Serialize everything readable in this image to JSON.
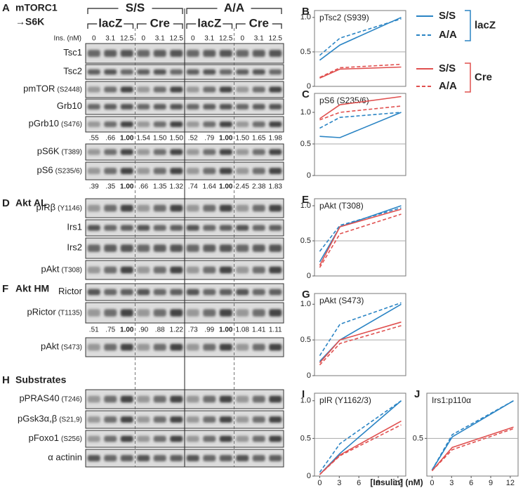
{
  "blot_panel": {
    "sections": [
      {
        "letter": "A",
        "title": [
          "mTORC1",
          "→S6K"
        ]
      },
      {
        "letter": "D",
        "title": [
          "Akt AL"
        ]
      },
      {
        "letter": "F",
        "title": [
          "Akt HM"
        ]
      },
      {
        "letter": "H",
        "title": [
          "Substrates"
        ]
      }
    ],
    "genotypes": [
      "S/S",
      "A/A"
    ],
    "treatments": [
      "lacZ",
      "Cre",
      "lacZ",
      "Cre"
    ],
    "ins_label": "Ins. (nM)",
    "lanes": [
      "0",
      "3.1",
      "12.5",
      "0",
      "3.1",
      "12.5",
      "0",
      "3.1",
      "12.5",
      "0",
      "3.1",
      "12.5"
    ],
    "rows": [
      {
        "name": "Tsc1"
      },
      {
        "name": "Tsc2"
      },
      {
        "name": "pmTOR",
        "site": "(S2448)"
      },
      {
        "name": "Grb10"
      },
      {
        "name": "pGrb10",
        "site": "(S476)"
      },
      {
        "name": "pS6K",
        "site": "(T389)"
      },
      {
        "name": "pS6",
        "site": "(S235/6)"
      },
      {
        "name": "pIRβ",
        "site": "(Y1146)"
      },
      {
        "name": "Irs1"
      },
      {
        "name": "Irs2"
      },
      {
        "name": "pAkt",
        "site": "(T308)"
      },
      {
        "name": "Rictor"
      },
      {
        "name": "pRictor",
        "site": "(T1135)"
      },
      {
        "name": "pAkt",
        "site": "(S473)"
      },
      {
        "name": "pPRAS40",
        "site": "(T246)"
      },
      {
        "name": "pGsk3α,β",
        "site": "(S21,9)"
      },
      {
        "name": "pFoxo1",
        "site": "(S256)"
      },
      {
        "name": "α actinin"
      }
    ],
    "quants": [
      [
        ".55",
        ".66",
        "1.00",
        "1.54",
        "1.50",
        "1.50",
        ".52",
        ".79",
        "1.00",
        "1.50",
        "1.65",
        "1.98"
      ],
      [
        ".39",
        ".35",
        "1.00",
        ".66",
        "1.35",
        "1.32",
        ".74",
        "1.64",
        "1.00",
        "2.45",
        "2.38",
        "1.83"
      ],
      [
        ".51",
        ".75",
        "1.00",
        ".90",
        ".88",
        "1.22",
        ".73",
        ".99",
        "1.00",
        "1.08",
        "1.41",
        "1.11"
      ]
    ]
  },
  "legend": [
    {
      "group": "lacZ",
      "color": "#2a84c4",
      "entries": [
        {
          "name": "S/S",
          "dashed": false
        },
        {
          "name": "A/A",
          "dashed": true
        }
      ]
    },
    {
      "group": "Cre",
      "color": "#e0504f",
      "entries": [
        {
          "name": "S/S",
          "dashed": false
        },
        {
          "name": "A/A",
          "dashed": true
        }
      ]
    }
  ],
  "x_label": "[Insulin] (nM)",
  "chart_data": [
    {
      "type": "line",
      "letter": "B",
      "title": "pTsc2 (S939)",
      "x": [
        0,
        3.1,
        12.5
      ],
      "xlim": [
        -0.8,
        13.2
      ],
      "ylim": [
        0,
        1.1
      ],
      "yticks": [
        0,
        0.5,
        {
          "value": 1,
          "label": "1.0"
        }
      ],
      "hline": 0.5,
      "series": [
        {
          "color": "#2a84c4",
          "dashed": false,
          "values": [
            0.38,
            0.6,
            1.0
          ]
        },
        {
          "color": "#2a84c4",
          "dashed": true,
          "values": [
            0.45,
            0.7,
            0.98
          ]
        },
        {
          "color": "#e0504f",
          "dashed": false,
          "values": [
            0.12,
            0.25,
            0.28
          ]
        },
        {
          "color": "#e0504f",
          "dashed": true,
          "values": [
            0.13,
            0.27,
            0.32
          ]
        }
      ]
    },
    {
      "type": "line",
      "letter": "C",
      "title": "pS6 (S235/6)",
      "x": [
        0,
        3.1,
        12.5
      ],
      "xlim": [
        -0.8,
        13.2
      ],
      "ylim": [
        0,
        1.3
      ],
      "yticks": [
        0,
        0.5,
        {
          "value": 1,
          "label": "1.0"
        }
      ],
      "hline": 0.5,
      "series": [
        {
          "color": "#2a84c4",
          "dashed": false,
          "values": [
            0.62,
            0.6,
            1.0
          ]
        },
        {
          "color": "#2a84c4",
          "dashed": true,
          "values": [
            0.75,
            0.92,
            1.0
          ]
        },
        {
          "color": "#e0504f",
          "dashed": false,
          "values": [
            0.9,
            1.12,
            1.25
          ]
        },
        {
          "color": "#e0504f",
          "dashed": true,
          "values": [
            0.88,
            1.0,
            1.1
          ]
        }
      ]
    },
    {
      "type": "line",
      "letter": "E",
      "title": "pAkt (T308)",
      "x": [
        0,
        3.1,
        12.5
      ],
      "xlim": [
        -0.8,
        13.2
      ],
      "ylim": [
        0,
        1.1
      ],
      "yticks": [
        0,
        0.5,
        {
          "value": 1,
          "label": "1.0"
        }
      ],
      "hline": 0.5,
      "series": [
        {
          "color": "#2a84c4",
          "dashed": false,
          "values": [
            0.2,
            0.7,
            1.0
          ]
        },
        {
          "color": "#2a84c4",
          "dashed": true,
          "values": [
            0.35,
            0.72,
            0.97
          ]
        },
        {
          "color": "#e0504f",
          "dashed": false,
          "values": [
            0.15,
            0.7,
            0.95
          ]
        },
        {
          "color": "#e0504f",
          "dashed": true,
          "values": [
            0.12,
            0.6,
            0.88
          ]
        }
      ]
    },
    {
      "type": "line",
      "letter": "G",
      "title": "pAkt (S473)",
      "x": [
        0,
        3.1,
        12.5
      ],
      "xlim": [
        -0.8,
        13.2
      ],
      "ylim": [
        0,
        1.15
      ],
      "yticks": [
        0,
        0.5,
        {
          "value": 1,
          "label": "1.0"
        }
      ],
      "hline": 0.5,
      "series": [
        {
          "color": "#2a84c4",
          "dashed": false,
          "values": [
            0.2,
            0.5,
            1.0
          ]
        },
        {
          "color": "#2a84c4",
          "dashed": true,
          "values": [
            0.28,
            0.72,
            1.02
          ]
        },
        {
          "color": "#e0504f",
          "dashed": false,
          "values": [
            0.18,
            0.5,
            0.75
          ]
        },
        {
          "color": "#e0504f",
          "dashed": true,
          "values": [
            0.15,
            0.45,
            0.7
          ]
        }
      ]
    },
    {
      "type": "line",
      "letter": "I",
      "title": "pIR (Y1162/3)",
      "x": [
        0,
        3.1,
        12.5
      ],
      "xlim": [
        -0.8,
        13.2
      ],
      "ylim": [
        0,
        1.1
      ],
      "xticks": [
        0,
        3,
        6,
        9,
        12
      ],
      "yticks": [
        0,
        0.5,
        {
          "value": 1,
          "label": "1.0"
        }
      ],
      "hline": 0.5,
      "series": [
        {
          "color": "#2a84c4",
          "dashed": false,
          "values": [
            0.02,
            0.3,
            1.0
          ]
        },
        {
          "color": "#2a84c4",
          "dashed": true,
          "values": [
            0.05,
            0.43,
            1.0
          ]
        },
        {
          "color": "#e0504f",
          "dashed": false,
          "values": [
            0.02,
            0.28,
            0.73
          ]
        },
        {
          "color": "#e0504f",
          "dashed": true,
          "values": [
            0.02,
            0.27,
            0.68
          ]
        }
      ]
    },
    {
      "type": "line",
      "letter": "J",
      "title": "Irs1:p110α",
      "x": [
        0,
        3.1,
        12.5
      ],
      "xlim": [
        -0.8,
        13.2
      ],
      "ylim": [
        0,
        1.1
      ],
      "xticks": [
        0,
        3,
        6,
        9,
        12
      ],
      "yticks": [
        0.5
      ],
      "hline": 0.5,
      "series": [
        {
          "color": "#2a84c4",
          "dashed": false,
          "values": [
            0.08,
            0.52,
            1.0
          ]
        },
        {
          "color": "#2a84c4",
          "dashed": true,
          "values": [
            0.08,
            0.55,
            1.0
          ]
        },
        {
          "color": "#e0504f",
          "dashed": false,
          "values": [
            0.07,
            0.38,
            0.65
          ]
        },
        {
          "color": "#e0504f",
          "dashed": true,
          "values": [
            0.07,
            0.35,
            0.63
          ]
        }
      ]
    }
  ]
}
